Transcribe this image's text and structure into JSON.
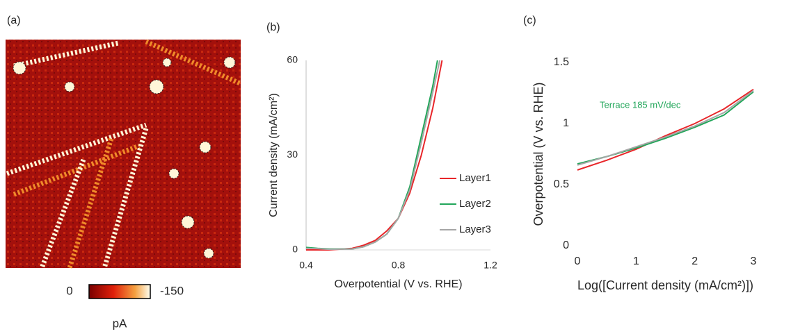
{
  "chart_data": [
    {
      "type": "heatmap",
      "label": "(a)",
      "colorbar_ticks": [
        0,
        -150
      ],
      "unit": "pA"
    },
    {
      "type": "line",
      "label": "(b)",
      "xlabel": "Overpotential (V vs. RHE)",
      "ylabel": "Current density (mA/cm²)",
      "xlim": [
        0.4,
        1.2
      ],
      "xticks": [
        0.4,
        0.8,
        1.2
      ],
      "ylim": [
        0,
        60
      ],
      "yticks": [
        0,
        30,
        60
      ],
      "series": [
        {
          "name": "Layer1",
          "color": "#e8262a",
          "x": [
            0.4,
            0.5,
            0.6,
            0.65,
            0.7,
            0.75,
            0.8,
            0.85,
            0.9,
            0.95,
            0.99
          ],
          "values": [
            0,
            0,
            0.5,
            1.5,
            3,
            6,
            10,
            18,
            30,
            45,
            60
          ]
        },
        {
          "name": "Layer2",
          "color": "#22a65a",
          "x": [
            0.4,
            0.45,
            0.5,
            0.6,
            0.65,
            0.7,
            0.75,
            0.8,
            0.85,
            0.9,
            0.95,
            0.97
          ],
          "values": [
            0.8,
            0.5,
            0.3,
            0.3,
            1,
            2.5,
            5,
            10,
            20,
            36,
            52,
            60
          ]
        },
        {
          "name": "Layer3",
          "color": "#a6a6a6",
          "x": [
            0.4,
            0.45,
            0.5,
            0.6,
            0.65,
            0.7,
            0.75,
            0.8,
            0.85,
            0.9,
            0.95,
            0.98
          ],
          "values": [
            0.5,
            0.4,
            0.2,
            0.3,
            1,
            2.5,
            5,
            10,
            19,
            34,
            50,
            60
          ]
        }
      ]
    },
    {
      "type": "line",
      "label": "(c)",
      "xlabel": "Log([Current density (mA/cm²)])",
      "ylabel": "Overpotential (V vs. RHE)",
      "annotation": "Terrace 185 mV/dec",
      "xlim": [
        0,
        3
      ],
      "xticks": [
        0,
        1,
        2,
        3
      ],
      "ylim": [
        0,
        1.5
      ],
      "yticks": [
        0,
        0.5,
        1,
        1.5
      ],
      "series": [
        {
          "color": "#e8262a",
          "x": [
            0,
            0.5,
            1,
            1.5,
            2,
            2.5,
            3
          ],
          "values": [
            0.62,
            0.7,
            0.79,
            0.9,
            1.0,
            1.12,
            1.28
          ]
        },
        {
          "color": "#22a65a",
          "x": [
            0,
            0.5,
            1,
            1.5,
            2,
            2.5,
            3
          ],
          "values": [
            0.67,
            0.73,
            0.8,
            0.88,
            0.97,
            1.07,
            1.26
          ]
        },
        {
          "color": "#a6a6a6",
          "x": [
            0,
            0.5,
            1,
            1.5,
            2,
            2.5,
            3
          ],
          "values": [
            0.66,
            0.73,
            0.81,
            0.89,
            0.98,
            1.09,
            1.27
          ]
        }
      ]
    }
  ]
}
